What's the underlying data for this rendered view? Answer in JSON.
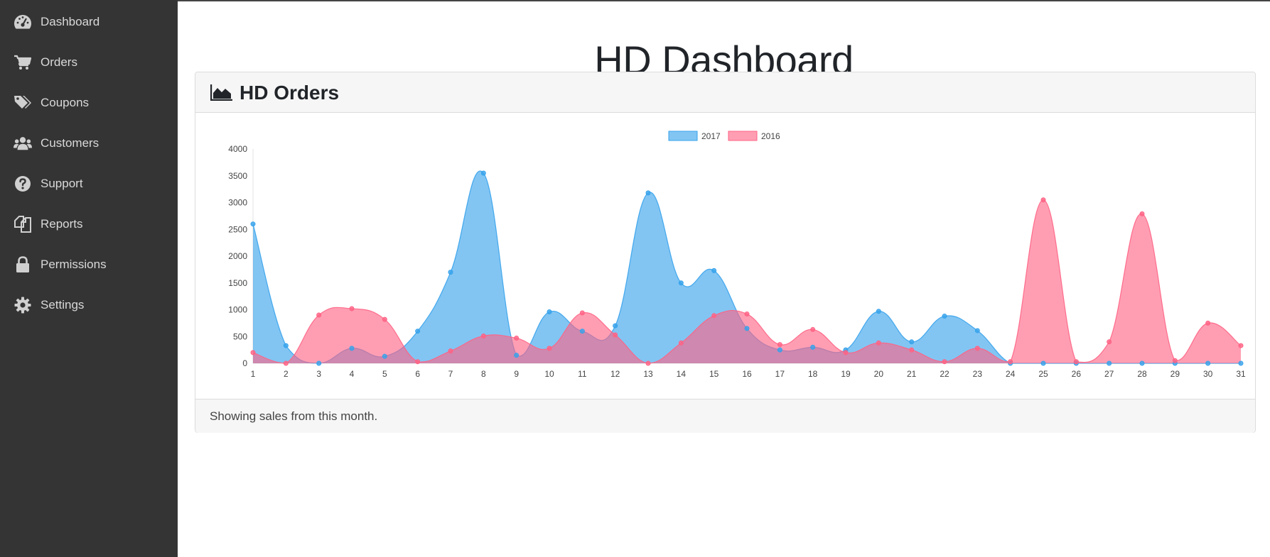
{
  "sidebar": {
    "items": [
      {
        "label": "Dashboard",
        "icon": "dashboard-icon"
      },
      {
        "label": "Orders",
        "icon": "cart-icon"
      },
      {
        "label": "Coupons",
        "icon": "tags-icon"
      },
      {
        "label": "Customers",
        "icon": "users-icon"
      },
      {
        "label": "Support",
        "icon": "question-icon"
      },
      {
        "label": "Reports",
        "icon": "copy-icon"
      },
      {
        "label": "Permissions",
        "icon": "lock-icon"
      },
      {
        "label": "Settings",
        "icon": "gear-icon"
      }
    ]
  },
  "page": {
    "title": "HD Dashboard"
  },
  "card": {
    "title": "HD Orders",
    "icon": "area-chart-icon",
    "footer": "Showing sales from this month."
  },
  "colors": {
    "sidebar_bg": "#343434",
    "series_2017": "#36a2eb",
    "series_2016": "#ff6384"
  },
  "chart_data": {
    "type": "area",
    "legend_position": "top",
    "grid": false,
    "x": [
      1,
      2,
      3,
      4,
      5,
      6,
      7,
      8,
      9,
      10,
      11,
      12,
      13,
      14,
      15,
      16,
      17,
      18,
      19,
      20,
      21,
      22,
      23,
      24,
      25,
      26,
      27,
      28,
      29,
      30,
      31
    ],
    "ylim": [
      0,
      4000
    ],
    "yticks": [
      0,
      500,
      1000,
      1500,
      2000,
      2500,
      3000,
      3500,
      4000
    ],
    "series": [
      {
        "name": "2017",
        "color": "#36a2eb",
        "values": [
          2600,
          330,
          0,
          280,
          130,
          600,
          1700,
          3550,
          150,
          960,
          600,
          700,
          3180,
          1500,
          1730,
          650,
          250,
          300,
          250,
          970,
          400,
          880,
          610,
          0,
          0,
          0,
          0,
          0,
          0,
          0,
          0
        ]
      },
      {
        "name": "2016",
        "color": "#ff6384",
        "values": [
          200,
          0,
          900,
          1020,
          820,
          30,
          230,
          510,
          470,
          280,
          940,
          530,
          0,
          380,
          890,
          920,
          350,
          630,
          200,
          380,
          250,
          30,
          280,
          30,
          3050,
          30,
          400,
          2790,
          50,
          750,
          330
        ]
      }
    ]
  }
}
